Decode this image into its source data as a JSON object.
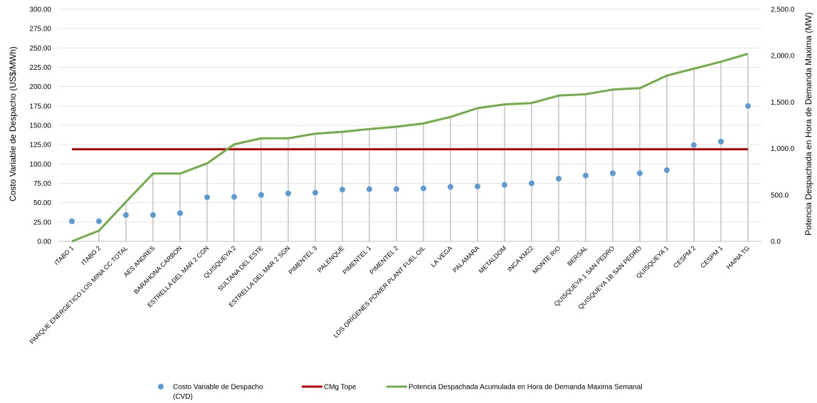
{
  "chart_data": {
    "type": "line",
    "y_left_label": "Costo Variable de Despacho (US$/MWh)",
    "y_right_label": "Potencia Despachada en Hora de Demanda Maxima (MW)",
    "y_left_lim": [
      0,
      300
    ],
    "y_right_lim": [
      0,
      2500
    ],
    "y_left_ticks": [
      "0.00",
      "25.00",
      "50.00",
      "75.00",
      "100.00",
      "125.00",
      "150.00",
      "175.00",
      "200.00",
      "225.00",
      "250.00",
      "275.00",
      "300.00"
    ],
    "y_right_ticks": [
      "0.0",
      "500.0",
      "1,000.0",
      "1,500.0",
      "2,000.0",
      "2,500.0"
    ],
    "categories": [
      "ITABO 1",
      "ITABO 2",
      "PARQUE ENERGETICO LOS MINA CC TOTAL",
      "AES ANDRES",
      "BARAHONA CARBON",
      "ESTRELLA DEL MAR 2 CGN",
      "QUISQUEYA 2",
      "SULTANA DEL ESTE",
      "ESTRELLA DEL MAR 2 SGN",
      "PIMENTEL 3",
      "PALENQUE",
      "PIMENTEL 1",
      "PIMENTEL 2",
      "LOS ORÍGENES POWER PLANT FUEL OIL",
      "LA VEGA",
      "PALAMARA",
      "METALDOM",
      "INCA KM22",
      "MONTE RIO",
      "BERSAL",
      "QUISQUEYA 1 SAN PEDRO",
      "QUISQUEYA 1B SAN PEDRO",
      "QUISQUEYA 1",
      "CESPM 2",
      "CESPM 1",
      "HAINA TG"
    ],
    "series": [
      {
        "name": "Costo Variable de Despacho (CVD)",
        "type": "scatter",
        "axis": "left",
        "color": "#5B9BD5",
        "values": [
          26,
          26,
          34,
          34,
          36.5,
          57,
          57.5,
          60,
          62,
          63,
          67,
          67.5,
          67.5,
          68.5,
          70.5,
          71,
          73,
          75,
          81,
          85,
          88,
          88,
          92,
          124.5,
          129,
          175
        ]
      },
      {
        "name": "CMg Tope",
        "type": "line",
        "axis": "left",
        "color": "#C00000",
        "values": [
          119,
          119,
          119,
          119,
          119,
          119,
          119,
          119,
          119,
          119,
          119,
          119,
          119,
          119,
          119,
          119,
          119,
          119,
          119,
          119,
          119,
          119,
          119,
          119,
          119,
          119
        ]
      },
      {
        "name": "Potencia Despachada Acumulada en Hora de Demanda Maxima Semanal",
        "type": "line",
        "axis": "right",
        "color": "#70AD47",
        "values": [
          0,
          115,
          425,
          730,
          730,
          840,
          1045,
          1110,
          1110,
          1160,
          1180,
          1210,
          1235,
          1270,
          1340,
          1435,
          1475,
          1490,
          1570,
          1585,
          1635,
          1650,
          1785,
          1860,
          1935,
          2020
        ]
      }
    ],
    "legend": {
      "position": "bottom",
      "items": [
        {
          "label_line1": "Costo Variable de Despacho",
          "label_line2": "(CVD)",
          "marker": "dot",
          "color": "#5B9BD5"
        },
        {
          "label_line1": "CMg Tope",
          "label_line2": "",
          "marker": "line",
          "color": "#C00000"
        },
        {
          "label_line1": "Potencia Despachada Acumulada en Hora de Demanda Maxima Semanal",
          "label_line2": "",
          "marker": "line",
          "color": "#70AD47"
        }
      ]
    },
    "grid": true
  }
}
